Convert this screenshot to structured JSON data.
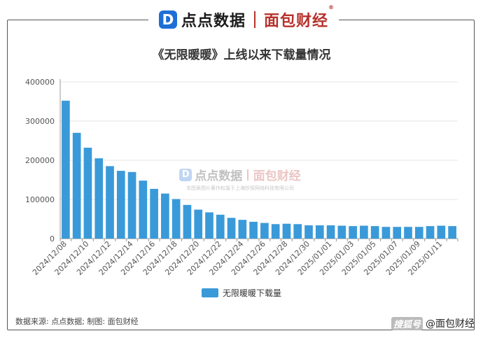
{
  "brand": {
    "left_icon": "D",
    "left_name": "点点数据",
    "right_name": "面包财经",
    "reg_mark": "®"
  },
  "watermark": {
    "note": "本图表图片著作权属于上海妙探网络科技有限公司"
  },
  "footer": {
    "source": "数据来源: 点点数据; 制图: 面包财经",
    "credit_logo": "搜狐号",
    "credit_text": "@面包财经"
  },
  "colors": {
    "bar": "#3a9ad9",
    "brand_blue": "#1d6fd6",
    "brand_red": "#b7312c"
  },
  "chart_data": {
    "type": "bar",
    "title": "《无限暖暖》上线以来下载量情况",
    "xlabel": "",
    "ylabel": "",
    "ylim": [
      0,
      400000
    ],
    "yticks": [
      0,
      100000,
      200000,
      300000,
      400000
    ],
    "grid": true,
    "legend_position": "bottom",
    "categories": [
      "2024/12/08",
      "2024/12/09",
      "2024/12/10",
      "2024/12/11",
      "2024/12/12",
      "2024/12/13",
      "2024/12/14",
      "2024/12/15",
      "2024/12/16",
      "2024/12/17",
      "2024/12/18",
      "2024/12/19",
      "2024/12/20",
      "2024/12/21",
      "2024/12/22",
      "2024/12/23",
      "2024/12/24",
      "2024/12/25",
      "2024/12/26",
      "2024/12/27",
      "2024/12/28",
      "2024/12/29",
      "2024/12/30",
      "2024/12/31",
      "2025/01/01",
      "2025/01/02",
      "2025/01/03",
      "2025/01/04",
      "2025/01/05",
      "2025/01/06",
      "2025/01/07",
      "2025/01/08",
      "2025/01/09",
      "2025/01/10",
      "2025/01/11",
      "2025/01/12"
    ],
    "tick_labels": [
      "2024/12/08",
      "2024/12/10",
      "2024/12/12",
      "2024/12/14",
      "2024/12/16",
      "2024/12/18",
      "2024/12/20",
      "2024/12/22",
      "2024/12/24",
      "2024/12/26",
      "2024/12/28",
      "2024/12/30",
      "2025/01/01",
      "2025/01/03",
      "2025/01/05",
      "2025/01/07",
      "2025/01/09",
      "2025/01/11"
    ],
    "series": [
      {
        "name": "无限暖暖下载量",
        "values": [
          352000,
          270000,
          232000,
          205000,
          185000,
          173000,
          170000,
          148000,
          127000,
          115000,
          101000,
          86000,
          74000,
          67000,
          61000,
          53000,
          48000,
          43000,
          40000,
          37000,
          38000,
          37000,
          34000,
          34000,
          34000,
          33000,
          32000,
          33000,
          32000,
          30000,
          30000,
          30000,
          30000,
          32000,
          33000,
          32000
        ]
      }
    ]
  }
}
